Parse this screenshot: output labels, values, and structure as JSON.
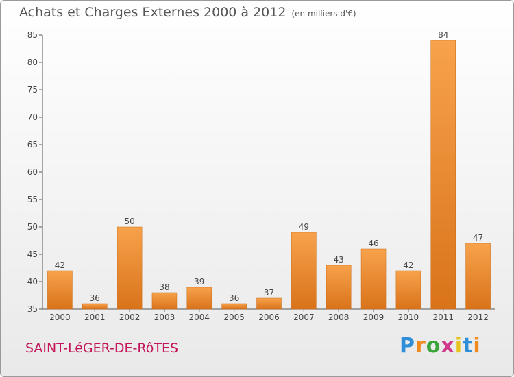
{
  "header": {
    "title": "Achats et Charges Externes 2000 à 2012",
    "subtitle": "(en milliers d'€)"
  },
  "footer": {
    "commune": "SAINT-LéGER-DE-RôTES",
    "logo": "Proxiti"
  },
  "colors": {
    "bar_light": "#f7a24c",
    "bar_dark": "#d9731a",
    "axis": "#555555",
    "grid": "#e0e0e0"
  },
  "chart_data": {
    "type": "bar",
    "title": "Achats et Charges Externes 2000 à 2012",
    "subtitle": "(en milliers d'€)",
    "categories": [
      "2000",
      "2001",
      "2002",
      "2003",
      "2004",
      "2005",
      "2006",
      "2007",
      "2008",
      "2009",
      "2010",
      "2011",
      "2012"
    ],
    "values": [
      42,
      36,
      50,
      38,
      39,
      36,
      37,
      49,
      43,
      46,
      42,
      84,
      47
    ],
    "ylim": [
      35,
      85
    ],
    "yticks": [
      35,
      40,
      45,
      50,
      55,
      60,
      65,
      70,
      75,
      80,
      85
    ],
    "xlabel": "",
    "ylabel": "",
    "grid": false,
    "data_labels": true
  }
}
